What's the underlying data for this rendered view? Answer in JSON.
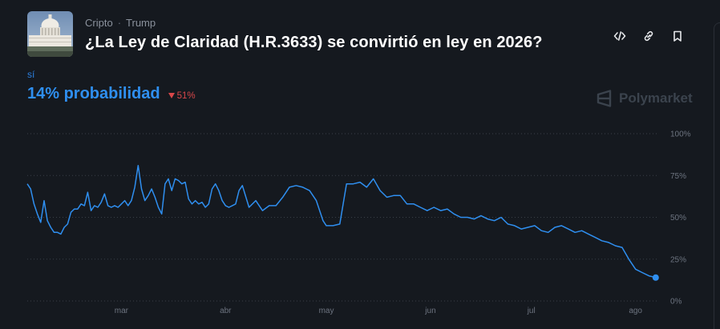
{
  "header": {
    "breadcrumb": [
      "Cripto",
      "Trump"
    ],
    "breadcrumb_sep": "·",
    "title": "¿La Ley de Claridad (H.R.3633) se convirtió en ley en 2026?"
  },
  "market": {
    "outcome_label": "sí",
    "probability_text": "14% probabilidad",
    "change_text": "51%",
    "change_direction": "down",
    "brand": "Polymarket"
  },
  "icons": {
    "embed": "code-icon",
    "link": "link-icon",
    "bookmark": "bookmark-icon"
  },
  "colors": {
    "background": "#15191f",
    "accent": "#2f8ff0",
    "negative": "#d8474a",
    "grid": "#3a4048"
  },
  "chart_data": {
    "type": "line",
    "series": [
      {
        "values_over_time": true,
        "x": [
          "2026-02-01",
          "2026-02-02",
          "2026-02-03",
          "2026-02-04",
          "2026-02-05",
          "2026-02-06",
          "2026-02-07",
          "2026-02-08",
          "2026-02-09",
          "2026-02-10",
          "2026-02-11",
          "2026-02-12",
          "2026-02-13",
          "2026-02-14",
          "2026-02-15",
          "2026-02-16",
          "2026-02-17",
          "2026-02-18",
          "2026-02-19",
          "2026-02-20",
          "2026-02-21",
          "2026-02-22",
          "2026-02-23",
          "2026-02-24",
          "2026-02-25",
          "2026-02-26",
          "2026-02-27",
          "2026-02-28",
          "2026-03-01",
          "2026-03-02",
          "2026-03-03",
          "2026-03-04",
          "2026-03-05",
          "2026-03-06",
          "2026-03-07",
          "2026-03-08",
          "2026-03-09",
          "2026-03-10",
          "2026-03-11",
          "2026-03-12",
          "2026-03-13",
          "2026-03-14",
          "2026-03-15",
          "2026-03-16",
          "2026-03-17",
          "2026-03-18",
          "2026-03-19",
          "2026-03-20",
          "2026-03-21",
          "2026-03-22",
          "2026-03-23",
          "2026-03-24",
          "2026-03-25",
          "2026-03-26",
          "2026-03-27",
          "2026-03-28",
          "2026-03-29",
          "2026-03-30",
          "2026-03-31",
          "2026-04-01",
          "2026-04-02",
          "2026-04-03",
          "2026-04-04",
          "2026-04-05",
          "2026-04-06",
          "2026-04-08",
          "2026-04-10",
          "2026-04-12",
          "2026-04-14",
          "2026-04-16",
          "2026-04-18",
          "2026-04-20",
          "2026-04-22",
          "2026-04-24",
          "2026-04-26",
          "2026-04-28",
          "2026-04-30",
          "2026-05-01",
          "2026-05-03",
          "2026-05-05",
          "2026-05-07",
          "2026-05-09",
          "2026-05-11",
          "2026-05-13",
          "2026-05-15",
          "2026-05-17",
          "2026-05-19",
          "2026-05-21",
          "2026-05-23",
          "2026-05-25",
          "2026-05-27",
          "2026-05-29",
          "2026-05-31",
          "2026-06-02",
          "2026-06-04",
          "2026-06-06",
          "2026-06-08",
          "2026-06-10",
          "2026-06-12",
          "2026-06-14",
          "2026-06-16",
          "2026-06-18",
          "2026-06-20",
          "2026-06-22",
          "2026-06-24",
          "2026-06-26",
          "2026-06-28",
          "2026-06-30",
          "2026-07-02",
          "2026-07-04",
          "2026-07-06",
          "2026-07-08",
          "2026-07-10",
          "2026-07-12",
          "2026-07-14",
          "2026-07-16",
          "2026-07-18",
          "2026-07-20",
          "2026-07-22",
          "2026-07-24",
          "2026-07-26",
          "2026-07-28",
          "2026-07-30",
          "2026-08-01",
          "2026-08-03",
          "2026-08-05",
          "2026-08-07"
        ],
        "values": [
          70,
          67,
          58,
          52,
          47,
          60,
          48,
          44,
          41,
          41,
          40,
          44,
          46,
          53,
          55,
          55,
          58,
          57,
          65,
          54,
          57,
          56,
          59,
          64,
          57,
          56,
          57,
          56,
          58,
          60,
          57,
          60,
          68,
          81,
          67,
          60,
          63,
          67,
          62,
          56,
          52,
          70,
          73,
          66,
          73,
          72,
          70,
          71,
          61,
          58,
          60,
          58,
          59,
          56,
          58,
          67,
          70,
          66,
          60,
          57,
          56,
          57,
          58,
          66,
          69,
          56,
          60,
          54,
          57,
          57,
          62,
          68,
          69,
          68,
          66,
          60,
          48,
          45,
          45,
          46,
          70,
          70,
          71,
          68,
          73,
          66,
          62,
          63,
          63,
          58,
          58,
          56,
          54,
          56,
          54,
          55,
          52,
          50,
          50,
          49,
          51,
          49,
          48,
          50,
          46,
          45,
          43,
          44,
          45,
          42,
          41,
          44,
          45,
          43,
          41,
          42,
          40,
          38,
          36,
          35,
          33,
          32,
          25,
          19,
          17,
          15,
          14
        ]
      }
    ],
    "x_ticks": [
      "mar",
      "abr",
      "may",
      "jun",
      "jul",
      "ago"
    ],
    "y_ticks": [
      "0%",
      "25%",
      "50%",
      "75%",
      "100%"
    ],
    "ylim": [
      0,
      100
    ],
    "grid": "horizontal dotted",
    "title": "",
    "xlabel": "",
    "ylabel": ""
  }
}
